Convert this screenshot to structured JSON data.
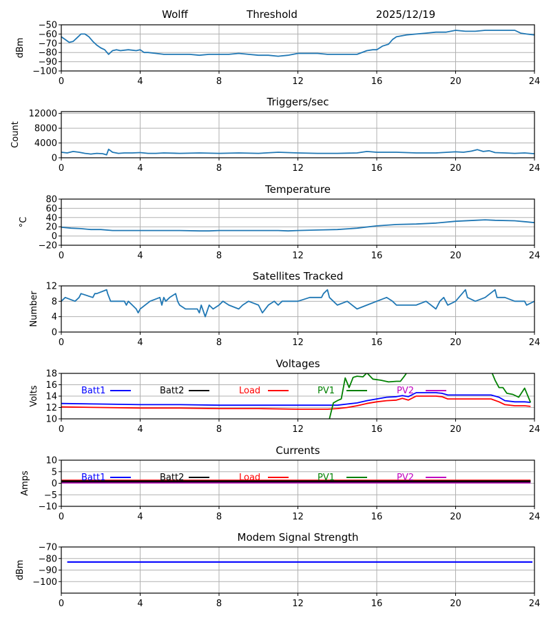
{
  "header": {
    "station": "Wolff",
    "mode": "Threshold",
    "date": "2025/12/19"
  },
  "chart_data": [
    {
      "id": "rssi",
      "type": "line",
      "title": "",
      "ylabel": "dBm",
      "xlabel": "",
      "xlim": [
        0,
        24
      ],
      "ylim": [
        -100,
        -50
      ],
      "xticks": [
        "0",
        "4",
        "8",
        "12",
        "16",
        "20",
        "24"
      ],
      "yticks": [
        "-50",
        "-60",
        "-70",
        "-80",
        "-90",
        "-100"
      ],
      "ytick_values": [
        -50,
        -60,
        -70,
        -80,
        -90,
        -100
      ],
      "grid": true,
      "series": [
        {
          "name": "signal",
          "color": "#1f77b4",
          "x": [
            0,
            0.2,
            0.4,
            0.6,
            0.8,
            1.0,
            1.2,
            1.4,
            1.6,
            1.8,
            2.0,
            2.2,
            2.4,
            2.6,
            2.8,
            3.0,
            3.4,
            3.8,
            4.0,
            4.2,
            4.4,
            4.8,
            5.2,
            5.6,
            6.0,
            6.5,
            7.0,
            7.5,
            8.0,
            8.5,
            9.0,
            9.5,
            10.0,
            10.5,
            11.0,
            11.5,
            12.0,
            12.5,
            13.0,
            13.5,
            14.0,
            14.5,
            15.0,
            15.5,
            15.8,
            16.0,
            16.3,
            16.6,
            16.8,
            17.0,
            17.5,
            18.0,
            18.5,
            19.0,
            19.5,
            20.0,
            20.5,
            21.0,
            21.5,
            22.0,
            22.5,
            23.0,
            23.3,
            23.6,
            24.0
          ],
          "y": [
            -63,
            -66,
            -69,
            -68,
            -64,
            -60,
            -60,
            -63,
            -68,
            -72,
            -75,
            -77,
            -82,
            -78,
            -77,
            -78,
            -77,
            -78,
            -77,
            -80,
            -80,
            -81,
            -82,
            -82,
            -82,
            -82,
            -83,
            -82,
            -82,
            -82,
            -81,
            -82,
            -83,
            -83,
            -84,
            -83,
            -81,
            -81,
            -81,
            -82,
            -82,
            -82,
            -82,
            -78,
            -77,
            -77,
            -73,
            -71,
            -66,
            -63,
            -61,
            -60,
            -59,
            -58,
            -58,
            -56,
            -57,
            -57,
            -56,
            -56,
            -56,
            -56,
            -59,
            -60,
            -61
          ]
        }
      ]
    },
    {
      "id": "triggers",
      "type": "line",
      "title": "Triggers/sec",
      "ylabel": "Count",
      "xlabel": "",
      "xlim": [
        0,
        24
      ],
      "ylim": [
        0,
        12500
      ],
      "xticks": [
        "0",
        "4",
        "8",
        "12",
        "16",
        "20",
        "24"
      ],
      "yticks": [
        "12000",
        "8000",
        "4000",
        "0"
      ],
      "ytick_values": [
        12000,
        8000,
        4000,
        0
      ],
      "grid": true,
      "series": [
        {
          "name": "triggers",
          "color": "#1f77b4",
          "x": [
            0,
            0.3,
            0.6,
            0.9,
            1.2,
            1.5,
            1.8,
            2.1,
            2.3,
            2.4,
            2.6,
            2.9,
            3.2,
            3.6,
            4.0,
            4.4,
            4.8,
            5.2,
            6.0,
            7.0,
            8.0,
            9.0,
            10.0,
            11.0,
            12.0,
            13.0,
            14.0,
            15.0,
            15.5,
            16.0,
            17.0,
            18.0,
            19.0,
            19.6,
            20.0,
            20.4,
            20.8,
            21.1,
            21.4,
            21.7,
            22.0,
            22.5,
            23.0,
            23.5,
            24.0
          ],
          "y": [
            1500,
            1300,
            1700,
            1500,
            1200,
            1000,
            1200,
            1100,
            800,
            2300,
            1500,
            1200,
            1300,
            1300,
            1400,
            1200,
            1200,
            1300,
            1200,
            1300,
            1200,
            1300,
            1200,
            1500,
            1300,
            1200,
            1200,
            1300,
            1700,
            1500,
            1500,
            1300,
            1300,
            1500,
            1600,
            1500,
            1800,
            2200,
            1700,
            1900,
            1400,
            1300,
            1200,
            1300,
            1100
          ]
        }
      ]
    },
    {
      "id": "temperature",
      "type": "line",
      "title": "Temperature",
      "ylabel": "°C",
      "xlabel": "",
      "xlim": [
        0,
        24
      ],
      "ylim": [
        -20,
        80
      ],
      "xticks": [
        "0",
        "4",
        "8",
        "12",
        "16",
        "20",
        "24"
      ],
      "yticks": [
        "80",
        "60",
        "40",
        "20",
        "0",
        "-20"
      ],
      "ytick_values": [
        80,
        60,
        40,
        20,
        0,
        -20
      ],
      "grid": true,
      "series": [
        {
          "name": "temperature",
          "color": "#1f77b4",
          "x": [
            0,
            0.5,
            1.0,
            1.5,
            2.0,
            2.6,
            3.0,
            4.0,
            5.0,
            6.0,
            7.0,
            7.5,
            8.0,
            9.0,
            10.0,
            11.0,
            11.5,
            12.0,
            13.0,
            14.0,
            15.0,
            16.0,
            17.0,
            18.0,
            19.0,
            20.0,
            21.0,
            21.5,
            22.0,
            23.0,
            23.5,
            24.0
          ],
          "y": [
            19,
            17,
            16,
            14,
            14,
            12,
            12,
            12,
            12,
            12,
            11,
            11,
            12,
            12,
            12,
            12,
            11,
            12,
            13,
            14,
            17,
            22,
            25,
            26,
            28,
            32,
            34,
            35,
            34,
            33,
            31,
            29
          ]
        }
      ]
    },
    {
      "id": "satellites",
      "type": "line",
      "title": "Satellites Tracked",
      "ylabel": "Number",
      "xlabel": "",
      "xlim": [
        0,
        24
      ],
      "ylim": [
        0,
        12
      ],
      "xticks": [
        "0",
        "4",
        "8",
        "12",
        "16",
        "20",
        "24"
      ],
      "yticks": [
        "12",
        "8",
        "4",
        "0"
      ],
      "ytick_values": [
        12,
        8,
        4,
        0
      ],
      "grid": true,
      "series": [
        {
          "name": "satellites",
          "color": "#1f77b4",
          "x": [
            0,
            0.2,
            0.7,
            0.9,
            1.0,
            1.6,
            1.7,
            1.8,
            2.3,
            2.35,
            2.5,
            3.2,
            3.3,
            3.4,
            3.6,
            3.8,
            3.9,
            4.0,
            4.5,
            5.0,
            5.1,
            5.2,
            5.3,
            5.5,
            5.8,
            5.9,
            6.0,
            6.3,
            6.9,
            7.0,
            7.1,
            7.3,
            7.5,
            7.7,
            8.0,
            8.2,
            8.5,
            9.0,
            9.2,
            9.5,
            10.0,
            10.2,
            10.5,
            10.8,
            11.0,
            11.2,
            12.0,
            12.6,
            13.2,
            13.3,
            13.5,
            13.6,
            13.8,
            14.0,
            14.5,
            15.0,
            15.5,
            16.0,
            16.5,
            16.8,
            17.0,
            17.5,
            18.0,
            18.5,
            19.0,
            19.2,
            19.4,
            19.6,
            20.0,
            20.5,
            20.6,
            21.0,
            21.5,
            22.0,
            22.1,
            22.5,
            23.0,
            23.5,
            23.6,
            24.0
          ],
          "y": [
            8,
            9,
            8,
            9,
            10,
            9,
            10,
            10,
            11,
            10,
            8,
            8,
            7,
            8,
            7,
            6,
            5,
            6,
            8,
            9,
            7,
            9,
            8,
            9,
            10,
            8,
            7,
            6,
            6,
            5,
            7,
            4,
            7,
            6,
            7,
            8,
            7,
            6,
            7,
            8,
            7,
            5,
            7,
            8,
            7,
            8,
            8,
            9,
            9,
            10,
            11,
            9,
            8,
            7,
            8,
            6,
            7,
            8,
            9,
            8,
            7,
            7,
            7,
            8,
            6,
            8,
            9,
            7,
            8,
            11,
            9,
            8,
            9,
            11,
            9,
            9,
            8,
            8,
            7,
            8
          ]
        }
      ]
    },
    {
      "id": "voltages",
      "type": "line",
      "title": "Voltages",
      "ylabel": "Volts",
      "xlabel": "",
      "xlim": [
        0,
        24
      ],
      "ylim": [
        10,
        18
      ],
      "xticks": [
        "0",
        "4",
        "8",
        "12",
        "16",
        "20",
        "24"
      ],
      "yticks": [
        "18",
        "16",
        "14",
        "12",
        "10"
      ],
      "ytick_values": [
        18,
        16,
        14,
        12,
        10
      ],
      "grid": true,
      "legend": [
        "Batt1",
        "Batt2",
        "Load",
        "PV1",
        "PV2"
      ],
      "legend_colors": [
        "#0000ff",
        "#000000",
        "#ff0000",
        "#008000",
        "#bf00bf"
      ],
      "series": [
        {
          "name": "Batt1",
          "color": "#0000ff",
          "x": [
            0,
            2,
            4,
            6,
            8,
            10,
            12,
            13.5,
            14,
            14.5,
            15,
            15.5,
            16,
            16.5,
            17,
            17.3,
            17.6,
            18,
            19,
            19.3,
            19.6,
            20,
            21,
            21.8,
            22.2,
            22.5,
            23,
            23.5,
            23.8
          ],
          "y": [
            12.7,
            12.6,
            12.5,
            12.5,
            12.4,
            12.4,
            12.4,
            12.4,
            12.4,
            12.6,
            12.8,
            13.2,
            13.5,
            13.8,
            13.9,
            14.1,
            13.9,
            14.6,
            14.6,
            14.5,
            14.2,
            14.2,
            14.2,
            14.2,
            13.8,
            13.2,
            13.0,
            13.0,
            12.9
          ]
        },
        {
          "name": "Load",
          "color": "#ff0000",
          "x": [
            0,
            2,
            4,
            6,
            8,
            10,
            12,
            13.5,
            14,
            14.5,
            15,
            15.5,
            16,
            16.5,
            17,
            17.3,
            17.6,
            18,
            19,
            19.3,
            19.6,
            20,
            21,
            21.8,
            22.2,
            22.5,
            23,
            23.5,
            23.8
          ],
          "y": [
            12.1,
            12.0,
            11.9,
            11.9,
            11.8,
            11.8,
            11.7,
            11.7,
            11.8,
            12.0,
            12.3,
            12.7,
            13.0,
            13.2,
            13.3,
            13.6,
            13.3,
            14.0,
            14.0,
            13.9,
            13.5,
            13.5,
            13.5,
            13.5,
            13.0,
            12.5,
            12.3,
            12.3,
            12.2
          ]
        },
        {
          "name": "PV1",
          "color": "#008000",
          "x": [
            13.6,
            13.8,
            14.0,
            14.2,
            14.4,
            14.6,
            14.8,
            15.0,
            15.3,
            15.5,
            15.8,
            16.2,
            16.6,
            17.0,
            17.2,
            17.4,
            17.6,
            21.8,
            22.0,
            22.2,
            22.4,
            22.6,
            22.9,
            23.2,
            23.5,
            23.8
          ],
          "y": [
            10,
            12.8,
            13.2,
            13.5,
            17.2,
            15.5,
            17.3,
            17.5,
            17.4,
            18.1,
            17.0,
            16.8,
            16.5,
            16.6,
            16.6,
            17.5,
            18.5,
            18.5,
            16.8,
            15.5,
            15.5,
            14.5,
            14.3,
            13.8,
            15.4,
            12.9
          ]
        }
      ]
    },
    {
      "id": "currents",
      "type": "line",
      "title": "Currents",
      "ylabel": "Amps",
      "xlabel": "",
      "xlim": [
        0,
        24
      ],
      "ylim": [
        -10,
        10
      ],
      "xticks": [
        "0",
        "4",
        "8",
        "12",
        "16",
        "20",
        "24"
      ],
      "yticks": [
        "10",
        "5",
        "0",
        "-5",
        "-10"
      ],
      "ytick_values": [
        10,
        5,
        0,
        -5,
        -10
      ],
      "grid": true,
      "legend": [
        "Batt1",
        "Batt2",
        "Load",
        "PV1",
        "PV2"
      ],
      "legend_colors": [
        "#0000ff",
        "#000000",
        "#ff0000",
        "#008000",
        "#bf00bf"
      ],
      "series": [
        {
          "name": "PV2",
          "color": "#bf00bf",
          "x": [
            0,
            23.8
          ],
          "y": [
            0.4,
            0.4
          ]
        },
        {
          "name": "Load",
          "color": "#ff0000",
          "x": [
            0,
            23.8
          ],
          "y": [
            1.1,
            1.1
          ]
        },
        {
          "name": "Batt2",
          "color": "#000000",
          "x": [
            0,
            23.8
          ],
          "y": [
            0.8,
            0.8
          ]
        }
      ]
    },
    {
      "id": "modem",
      "type": "line",
      "title": "Modem Signal Strength",
      "ylabel": "dBm",
      "xlabel": "",
      "xlim": [
        0,
        24
      ],
      "ylim": [
        -110,
        -70
      ],
      "xticks": [
        "0",
        "4",
        "8",
        "12",
        "16",
        "20",
        "24"
      ],
      "yticks": [
        "-70",
        "-80",
        "-90",
        "-100"
      ],
      "ytick_values": [
        -70,
        -80,
        -90,
        -100
      ],
      "grid": true,
      "series": [
        {
          "name": "modem",
          "color": "#0000ff",
          "x": [
            0.3,
            23.9
          ],
          "y": [
            -83,
            -83
          ]
        }
      ]
    }
  ]
}
